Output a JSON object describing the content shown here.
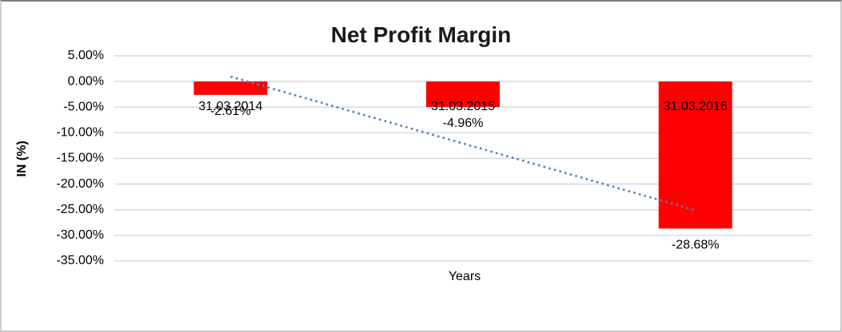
{
  "chart_data": {
    "type": "bar",
    "title": "Net Profit Margin",
    "xlabel": "Years",
    "ylabel": "IN (%)",
    "categories": [
      "31.03.2014",
      "31.03.2015",
      "31.03.2016"
    ],
    "values": [
      -2.61,
      -4.96,
      -28.68
    ],
    "data_labels": [
      "-2.61%",
      "-4.96%",
      "-28.68%"
    ],
    "y_tick_values": [
      5,
      0,
      -5,
      -10,
      -15,
      -20,
      -25,
      -30,
      -35
    ],
    "y_tick_labels": [
      "5.00%",
      "0.00%",
      "-5.00%",
      "-10.00%",
      "-15.00%",
      "-20.00%",
      "-25.00%",
      "-30.00%",
      "-35.00%"
    ],
    "ylim": [
      -35,
      5
    ],
    "grid": true,
    "legend": "none",
    "bar_color": "#ff0000",
    "gridline_color": "#d9d9d9",
    "label_color": "#000000",
    "trendline": {
      "style": "dotted",
      "color": "#4f81bd",
      "start_value": 0.96,
      "end_value": -25.12
    }
  }
}
